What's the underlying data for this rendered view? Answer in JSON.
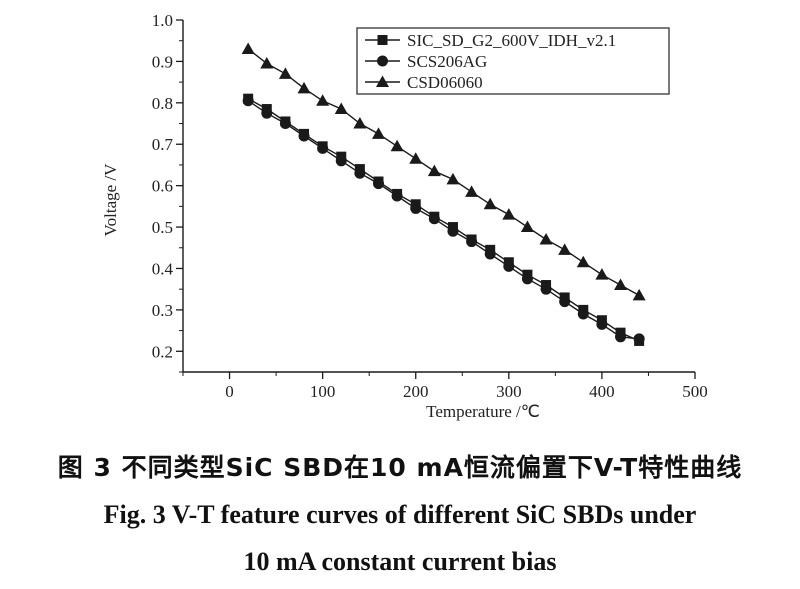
{
  "chart_data": {
    "type": "line",
    "xlabel": "Temperature /℃",
    "ylabel": "Voltage /V",
    "xlim": [
      -50,
      500
    ],
    "ylim": [
      0.15,
      1.0
    ],
    "xticks": [
      0,
      100,
      200,
      300,
      400,
      500
    ],
    "yticks": [
      0.2,
      0.3,
      0.4,
      0.5,
      0.6,
      0.7,
      0.8,
      0.9,
      1.0
    ],
    "grid": false,
    "legend_position": "top-right",
    "x": [
      20,
      40,
      60,
      80,
      100,
      120,
      140,
      160,
      180,
      200,
      220,
      240,
      260,
      280,
      300,
      320,
      340,
      360,
      380,
      400,
      420,
      440
    ],
    "series": [
      {
        "name": "SIC_SD_G2_600V_IDH_v2.1",
        "marker": "square",
        "values": [
          0.81,
          0.785,
          0.755,
          0.725,
          0.695,
          0.67,
          0.64,
          0.61,
          0.58,
          0.555,
          0.525,
          0.5,
          0.47,
          0.445,
          0.415,
          0.385,
          0.36,
          0.33,
          0.3,
          0.275,
          0.245,
          0.225
        ]
      },
      {
        "name": "SCS206AG",
        "marker": "circle",
        "values": [
          0.805,
          0.775,
          0.75,
          0.72,
          0.69,
          0.66,
          0.63,
          0.605,
          0.575,
          0.545,
          0.52,
          0.49,
          0.465,
          0.435,
          0.405,
          0.375,
          0.35,
          0.32,
          0.29,
          0.265,
          0.235,
          0.23
        ]
      },
      {
        "name": "CSD06060",
        "marker": "triangle",
        "values": [
          0.93,
          0.895,
          0.87,
          0.835,
          0.805,
          0.785,
          0.75,
          0.725,
          0.695,
          0.665,
          0.635,
          0.615,
          0.585,
          0.555,
          0.53,
          0.5,
          0.47,
          0.445,
          0.415,
          0.385,
          0.36,
          0.335
        ]
      }
    ]
  },
  "caption": {
    "cn": "图 3  不同类型SiC SBD在10 mA恒流偏置下V-T特性曲线",
    "en_line1": "Fig. 3  V-T feature curves of different SiC SBDs under",
    "en_line2": "10 mA constant current bias"
  },
  "colors": {
    "line": "#1a1a1a",
    "text": "#222222"
  }
}
